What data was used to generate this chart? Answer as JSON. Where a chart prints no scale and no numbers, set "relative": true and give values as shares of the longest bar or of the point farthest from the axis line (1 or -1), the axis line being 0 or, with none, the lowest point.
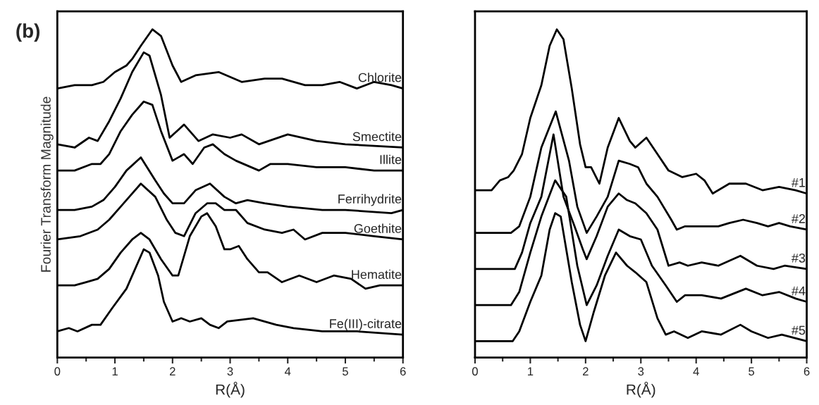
{
  "chart_data": [
    {
      "type": "line",
      "relative": true,
      "xlabel": "R(Å)",
      "ylabel": "Fourier Transform Magnitude",
      "xlim": [
        0,
        6
      ],
      "xticks": [
        0,
        1,
        2,
        3,
        4,
        5,
        6
      ],
      "legend": false,
      "grid": false,
      "annotations": [
        "(b)"
      ],
      "series": [
        {
          "name": "Chlorite",
          "color": "#000000",
          "x": [
            0,
            0.3,
            0.6,
            0.8,
            1.0,
            1.2,
            1.3,
            1.45,
            1.65,
            1.8,
            2.0,
            2.15,
            2.4,
            2.8,
            3.2,
            3.6,
            3.9,
            4.3,
            4.6,
            4.9,
            5.2,
            5.5,
            5.8,
            6.0
          ],
          "values": [
            0.82,
            0.83,
            0.83,
            0.84,
            0.87,
            0.89,
            0.91,
            0.95,
            1.0,
            0.98,
            0.89,
            0.84,
            0.86,
            0.87,
            0.84,
            0.85,
            0.85,
            0.83,
            0.83,
            0.84,
            0.82,
            0.84,
            0.83,
            0.82
          ]
        },
        {
          "name": "Smectite",
          "color": "#000000",
          "x": [
            0,
            0.3,
            0.55,
            0.7,
            0.9,
            1.1,
            1.3,
            1.5,
            1.6,
            1.8,
            1.95,
            2.2,
            2.45,
            2.7,
            3.0,
            3.2,
            3.5,
            4.0,
            4.5,
            5.0,
            6.0
          ],
          "values": [
            0.65,
            0.64,
            0.67,
            0.66,
            0.72,
            0.79,
            0.87,
            0.93,
            0.92,
            0.8,
            0.67,
            0.71,
            0.66,
            0.68,
            0.67,
            0.68,
            0.65,
            0.68,
            0.66,
            0.65,
            0.64
          ]
        },
        {
          "name": "Illite",
          "color": "#000000",
          "x": [
            0,
            0.3,
            0.6,
            0.75,
            0.9,
            1.1,
            1.3,
            1.5,
            1.65,
            1.8,
            2.0,
            2.2,
            2.35,
            2.55,
            2.7,
            2.9,
            3.1,
            3.5,
            3.7,
            4.0,
            4.5,
            5.0,
            5.5,
            6.0
          ],
          "values": [
            0.57,
            0.57,
            0.59,
            0.59,
            0.62,
            0.69,
            0.74,
            0.78,
            0.77,
            0.69,
            0.6,
            0.62,
            0.59,
            0.64,
            0.65,
            0.62,
            0.6,
            0.57,
            0.59,
            0.59,
            0.58,
            0.58,
            0.57,
            0.57
          ]
        },
        {
          "name": "Ferrihydrite",
          "color": "#000000",
          "x": [
            0,
            0.3,
            0.6,
            0.8,
            1.0,
            1.2,
            1.45,
            1.7,
            1.85,
            2.0,
            2.2,
            2.4,
            2.65,
            2.9,
            3.1,
            3.3,
            3.6,
            4.0,
            4.6,
            5.0,
            5.8,
            6.0
          ],
          "values": [
            0.45,
            0.45,
            0.46,
            0.48,
            0.52,
            0.57,
            0.61,
            0.54,
            0.5,
            0.47,
            0.47,
            0.51,
            0.53,
            0.49,
            0.47,
            0.48,
            0.47,
            0.46,
            0.45,
            0.45,
            0.44,
            0.45
          ]
        },
        {
          "name": "Goethite",
          "color": "#000000",
          "x": [
            0,
            0.4,
            0.7,
            0.9,
            1.1,
            1.25,
            1.45,
            1.7,
            1.9,
            2.05,
            2.2,
            2.4,
            2.6,
            2.75,
            2.9,
            3.1,
            3.3,
            3.6,
            3.9,
            4.1,
            4.3,
            4.6,
            5.0,
            5.5,
            6.0
          ],
          "values": [
            0.36,
            0.37,
            0.39,
            0.42,
            0.46,
            0.49,
            0.53,
            0.49,
            0.42,
            0.38,
            0.37,
            0.44,
            0.47,
            0.47,
            0.45,
            0.45,
            0.41,
            0.39,
            0.38,
            0.39,
            0.36,
            0.38,
            0.38,
            0.37,
            0.36
          ]
        },
        {
          "name": "Hematite",
          "color": "#000000",
          "x": [
            0,
            0.3,
            0.5,
            0.7,
            0.9,
            1.1,
            1.3,
            1.45,
            1.6,
            1.8,
            2.0,
            2.1,
            2.3,
            2.5,
            2.6,
            2.75,
            2.9,
            3.0,
            3.15,
            3.3,
            3.5,
            3.65,
            3.9,
            4.2,
            4.5,
            4.8,
            5.1,
            5.35,
            5.6,
            6.0
          ],
          "values": [
            0.22,
            0.22,
            0.23,
            0.24,
            0.27,
            0.32,
            0.36,
            0.38,
            0.36,
            0.3,
            0.25,
            0.25,
            0.37,
            0.43,
            0.44,
            0.4,
            0.33,
            0.33,
            0.34,
            0.3,
            0.26,
            0.26,
            0.23,
            0.25,
            0.23,
            0.25,
            0.24,
            0.21,
            0.22,
            0.22
          ]
        },
        {
          "name": "Fe(III)-citrate",
          "color": "#000000",
          "x": [
            0,
            0.2,
            0.35,
            0.6,
            0.75,
            0.95,
            1.2,
            1.35,
            1.5,
            1.6,
            1.75,
            1.85,
            2.0,
            2.15,
            2.3,
            2.5,
            2.65,
            2.8,
            2.95,
            3.4,
            3.8,
            4.1,
            4.6,
            5.2,
            6.0
          ],
          "values": [
            0.08,
            0.09,
            0.08,
            0.1,
            0.1,
            0.15,
            0.21,
            0.27,
            0.33,
            0.32,
            0.25,
            0.17,
            0.11,
            0.12,
            0.11,
            0.12,
            0.1,
            0.09,
            0.11,
            0.12,
            0.1,
            0.09,
            0.08,
            0.08,
            0.07
          ]
        }
      ]
    },
    {
      "type": "line",
      "relative": true,
      "xlabel": "R(Å)",
      "xlim": [
        0,
        6
      ],
      "xticks": [
        0,
        1,
        2,
        3,
        4,
        5,
        6
      ],
      "legend": false,
      "grid": false,
      "series": [
        {
          "name": "#1",
          "color": "#000000",
          "x": [
            0,
            0.3,
            0.45,
            0.6,
            0.7,
            0.85,
            1.0,
            1.2,
            1.35,
            1.48,
            1.6,
            1.75,
            1.9,
            2.0,
            2.1,
            2.25,
            2.4,
            2.6,
            2.8,
            2.9,
            3.1,
            3.3,
            3.5,
            3.75,
            4.0,
            4.15,
            4.3,
            4.6,
            4.9,
            5.2,
            5.5,
            5.8,
            6.0
          ],
          "values": [
            0.51,
            0.51,
            0.54,
            0.55,
            0.57,
            0.62,
            0.73,
            0.83,
            0.95,
            1.0,
            0.97,
            0.82,
            0.65,
            0.58,
            0.58,
            0.53,
            0.64,
            0.73,
            0.66,
            0.64,
            0.67,
            0.62,
            0.57,
            0.55,
            0.56,
            0.54,
            0.5,
            0.53,
            0.53,
            0.51,
            0.52,
            0.51,
            0.5
          ]
        },
        {
          "name": "#2",
          "color": "#000000",
          "x": [
            0,
            0.65,
            0.8,
            1.0,
            1.2,
            1.46,
            1.7,
            1.85,
            2.02,
            2.2,
            2.4,
            2.6,
            2.8,
            2.95,
            3.1,
            3.3,
            3.55,
            3.65,
            3.8,
            4.0,
            4.2,
            4.4,
            4.6,
            4.85,
            5.1,
            5.3,
            5.5,
            5.7,
            6.0
          ],
          "values": [
            0.38,
            0.38,
            0.4,
            0.49,
            0.64,
            0.75,
            0.6,
            0.46,
            0.38,
            0.43,
            0.49,
            0.6,
            0.59,
            0.58,
            0.53,
            0.49,
            0.42,
            0.39,
            0.4,
            0.4,
            0.4,
            0.4,
            0.41,
            0.42,
            0.41,
            0.4,
            0.41,
            0.4,
            0.39
          ]
        },
        {
          "name": "#3",
          "color": "#000000",
          "x": [
            0,
            0.65,
            0.72,
            0.85,
            1.0,
            1.2,
            1.42,
            1.6,
            1.8,
            1.95,
            2.02,
            2.2,
            2.4,
            2.6,
            2.75,
            2.9,
            3.1,
            3.3,
            3.5,
            3.7,
            3.85,
            4.1,
            4.4,
            4.8,
            5.1,
            5.4,
            5.6,
            6.0
          ],
          "values": [
            0.27,
            0.27,
            0.27,
            0.32,
            0.41,
            0.49,
            0.68,
            0.49,
            0.4,
            0.33,
            0.3,
            0.37,
            0.46,
            0.5,
            0.48,
            0.47,
            0.44,
            0.39,
            0.28,
            0.29,
            0.28,
            0.29,
            0.28,
            0.31,
            0.28,
            0.27,
            0.28,
            0.27
          ]
        },
        {
          "name": "#4",
          "color": "#000000",
          "x": [
            0,
            0.65,
            0.8,
            1.0,
            1.2,
            1.45,
            1.65,
            1.85,
            2.02,
            2.2,
            2.4,
            2.6,
            2.8,
            3.0,
            3.2,
            3.45,
            3.65,
            3.8,
            4.1,
            4.45,
            4.9,
            5.2,
            5.5,
            5.8,
            6.0
          ],
          "values": [
            0.16,
            0.16,
            0.2,
            0.32,
            0.43,
            0.54,
            0.49,
            0.28,
            0.16,
            0.22,
            0.31,
            0.39,
            0.37,
            0.36,
            0.28,
            0.22,
            0.17,
            0.19,
            0.19,
            0.18,
            0.21,
            0.19,
            0.2,
            0.18,
            0.17
          ]
        },
        {
          "name": "#5",
          "color": "#000000",
          "x": [
            0,
            0.6,
            0.68,
            0.8,
            1.0,
            1.2,
            1.35,
            1.45,
            1.55,
            1.75,
            1.9,
            2.0,
            2.15,
            2.35,
            2.55,
            2.75,
            2.9,
            3.1,
            3.3,
            3.45,
            3.6,
            3.85,
            4.1,
            4.45,
            4.8,
            5.0,
            5.3,
            5.55,
            6.0
          ],
          "values": [
            0.05,
            0.05,
            0.05,
            0.08,
            0.17,
            0.25,
            0.39,
            0.44,
            0.43,
            0.23,
            0.1,
            0.05,
            0.14,
            0.25,
            0.32,
            0.28,
            0.26,
            0.23,
            0.12,
            0.07,
            0.08,
            0.06,
            0.08,
            0.07,
            0.1,
            0.08,
            0.06,
            0.07,
            0.05
          ]
        }
      ]
    }
  ]
}
